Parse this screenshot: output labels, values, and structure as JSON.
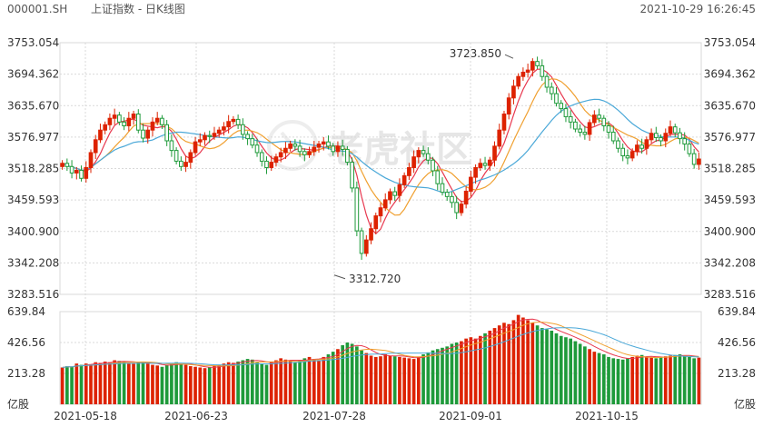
{
  "header": {
    "symbol": "000001.SH",
    "title": "上证指数 - 日K线图",
    "timestamp": "2021-10-29 16:26:45"
  },
  "watermark": "老虎社区",
  "colors": {
    "up": "#dd2200",
    "down": "#1e9a3a",
    "ma5": "#e8384f",
    "ma10": "#f0a030",
    "ma20": "#4aa8d8",
    "grid": "#d9d9d9",
    "text": "#333333"
  },
  "chart_data": [
    {
      "type": "candlestick",
      "title": "上证指数 - 日K线图",
      "ylim": [
        3283.516,
        3753.054
      ],
      "y_ticks": [
        "3753.054",
        "3694.362",
        "3635.670",
        "3576.977",
        "3518.285",
        "3459.593",
        "3400.900",
        "3342.208",
        "3283.516"
      ],
      "x_ticks": [
        "2021-05-18",
        "2021-06-23",
        "2021-07-28",
        "2021-09-01",
        "2021-10-15"
      ],
      "annotations": [
        {
          "text": "3723.850",
          "value": 3723.85
        },
        {
          "text": "3312.720",
          "value": 3312.72
        }
      ],
      "close": [
        3528,
        3522,
        3510,
        3515,
        3500,
        3520,
        3548,
        3572,
        3590,
        3600,
        3612,
        3618,
        3605,
        3598,
        3612,
        3620,
        3590,
        3575,
        3590,
        3605,
        3612,
        3600,
        3570,
        3552,
        3532,
        3522,
        3530,
        3548,
        3568,
        3572,
        3580,
        3578,
        3584,
        3590,
        3596,
        3606,
        3610,
        3600,
        3582,
        3574,
        3562,
        3548,
        3532,
        3520,
        3530,
        3540,
        3548,
        3556,
        3564,
        3560,
        3550,
        3544,
        3550,
        3558,
        3564,
        3568,
        3560,
        3550,
        3560,
        3554,
        3530,
        3482,
        3402,
        3360,
        3385,
        3406,
        3430,
        3445,
        3460,
        3475,
        3468,
        3488,
        3505,
        3520,
        3540,
        3552,
        3546,
        3534,
        3514,
        3490,
        3474,
        3466,
        3455,
        3436,
        3452,
        3476,
        3502,
        3520,
        3528,
        3524,
        3534,
        3560,
        3590,
        3620,
        3650,
        3672,
        3690,
        3698,
        3702,
        3718,
        3710,
        3690,
        3670,
        3658,
        3640,
        3630,
        3615,
        3605,
        3592,
        3586,
        3582,
        3604,
        3618,
        3612,
        3598,
        3586,
        3570,
        3556,
        3542,
        3538,
        3550,
        3562,
        3556,
        3572,
        3584,
        3576,
        3570,
        3584,
        3596,
        3585,
        3574,
        3564,
        3546,
        3526,
        3536
      ],
      "series": [
        {
          "name": "",
          "role": "ma5"
        },
        {
          "name": "",
          "role": "ma10"
        },
        {
          "name": "",
          "role": "ma20"
        }
      ]
    },
    {
      "type": "bar",
      "title": "",
      "ylabel": "亿股",
      "ylim": [
        0,
        705
      ],
      "y_ticks": [
        "639.84",
        "426.56",
        "213.28",
        "亿股"
      ],
      "values": [
        280,
        290,
        285,
        310,
        300,
        310,
        305,
        320,
        315,
        325,
        320,
        335,
        330,
        325,
        315,
        310,
        320,
        325,
        310,
        300,
        295,
        285,
        300,
        310,
        320,
        305,
        300,
        290,
        285,
        280,
        275,
        280,
        290,
        300,
        310,
        320,
        315,
        325,
        335,
        345,
        340,
        320,
        310,
        300,
        320,
        335,
        350,
        340,
        330,
        320,
        335,
        350,
        360,
        345,
        335,
        360,
        380,
        400,
        420,
        450,
        470,
        460,
        440,
        410,
        390,
        370,
        360,
        365,
        380,
        370,
        365,
        360,
        355,
        350,
        345,
        360,
        380,
        395,
        410,
        420,
        430,
        440,
        460,
        470,
        480,
        500,
        510,
        500,
        520,
        540,
        560,
        580,
        600,
        620,
        610,
        640,
        680,
        660,
        640,
        620,
        600,
        580,
        570,
        560,
        540,
        520,
        510,
        500,
        480,
        460,
        440,
        420,
        400,
        390,
        380,
        360,
        350,
        345,
        340,
        350,
        360,
        370,
        375,
        360,
        355,
        350,
        360,
        365,
        370,
        375,
        380,
        370,
        360,
        350,
        355
      ]
    }
  ]
}
